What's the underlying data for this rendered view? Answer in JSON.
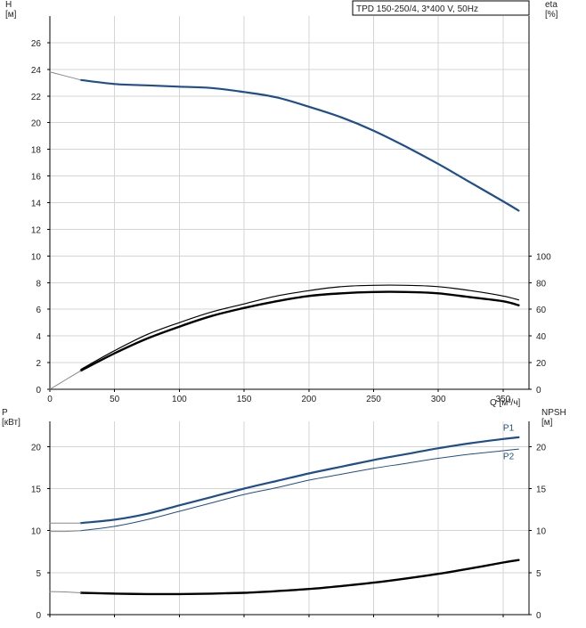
{
  "chart_data": [
    {
      "type": "line",
      "title": "TPD 150-250/4, 3*400 V, 50Hz",
      "xlabel": "Q [м³/ч]",
      "ylabel_left": "H\n[м]",
      "ylabel_right": "eta\n[%]",
      "xlim": [
        0,
        370
      ],
      "ylim_left": [
        0,
        28
      ],
      "ylim_right": [
        0,
        280
      ],
      "grid": true,
      "x_ticks": [
        0,
        50,
        100,
        150,
        200,
        250,
        300,
        350
      ],
      "y_ticks_left": [
        0,
        2,
        4,
        6,
        8,
        10,
        12,
        14,
        16,
        18,
        20,
        22,
        24,
        26
      ],
      "y_ticks_right": [
        0,
        20,
        40,
        60,
        80,
        100
      ],
      "series": [
        {
          "axis": "left",
          "color": "#1f4e8c",
          "width": 2.2,
          "style": "solid",
          "x": [
            24,
            50,
            75,
            100,
            125,
            150,
            175,
            200,
            225,
            250,
            275,
            300,
            325,
            350,
            362
          ],
          "y": [
            23.2,
            22.9,
            22.8,
            22.7,
            22.6,
            22.3,
            21.9,
            21.2,
            20.4,
            19.4,
            18.2,
            16.9,
            15.5,
            14.1,
            13.4
          ]
        },
        {
          "axis": "left",
          "color": "#888888",
          "width": 1,
          "style": "solid",
          "x": [
            0,
            8,
            16,
            24
          ],
          "y": [
            23.8,
            23.6,
            23.4,
            23.2
          ]
        },
        {
          "axis": "right",
          "color": "#000000",
          "width": 1.2,
          "style": "solid",
          "x": [
            24,
            50,
            75,
            100,
            125,
            150,
            175,
            200,
            225,
            250,
            275,
            300,
            325,
            350,
            362
          ],
          "y": [
            15,
            29,
            41,
            50,
            58,
            64,
            70,
            74,
            77,
            78,
            78,
            77,
            74,
            70,
            67
          ]
        },
        {
          "axis": "right",
          "color": "#000000",
          "width": 2.4,
          "style": "solid",
          "x": [
            24,
            50,
            75,
            100,
            125,
            150,
            175,
            200,
            225,
            250,
            275,
            300,
            325,
            350,
            362
          ],
          "y": [
            14,
            27,
            38,
            47,
            55,
            61,
            66,
            70,
            72,
            73,
            73,
            72,
            69,
            66,
            63
          ]
        },
        {
          "axis": "right",
          "color": "#888888",
          "width": 1,
          "style": "solid",
          "x": [
            0,
            12,
            24
          ],
          "y": [
            0,
            7,
            14
          ]
        }
      ]
    },
    {
      "type": "line",
      "xlabel": "",
      "ylabel_left": "P\n[кВт]",
      "ylabel_right": "NPSH\n[м]",
      "xlim": [
        0,
        370
      ],
      "ylim_left": [
        0,
        23
      ],
      "ylim_right": [
        0,
        23
      ],
      "grid": true,
      "y_ticks_left": [
        0,
        5,
        10,
        15,
        20
      ],
      "y_ticks_right": [
        0,
        5,
        10,
        15,
        20
      ],
      "series": [
        {
          "name": "P1",
          "axis": "left",
          "color": "#1f4e8c",
          "width": 2.2,
          "style": "solid",
          "x": [
            24,
            50,
            75,
            100,
            125,
            150,
            175,
            200,
            225,
            250,
            275,
            300,
            325,
            350,
            362
          ],
          "y": [
            10.9,
            11.3,
            12.0,
            13.0,
            14.0,
            15.0,
            15.9,
            16.8,
            17.6,
            18.4,
            19.1,
            19.8,
            20.4,
            20.9,
            21.1
          ]
        },
        {
          "name": "P2",
          "axis": "left",
          "color": "#1f4e8c",
          "width": 1,
          "style": "solid",
          "x": [
            24,
            50,
            75,
            100,
            125,
            150,
            175,
            200,
            225,
            250,
            275,
            300,
            325,
            350,
            362
          ],
          "y": [
            10.0,
            10.5,
            11.3,
            12.3,
            13.3,
            14.3,
            15.1,
            16.0,
            16.7,
            17.4,
            18.0,
            18.6,
            19.1,
            19.5,
            19.7
          ]
        },
        {
          "axis": "left",
          "color": "#888888",
          "width": 1,
          "style": "solid",
          "x": [
            0,
            12,
            24
          ],
          "y": [
            10.9,
            10.9,
            10.9
          ]
        },
        {
          "axis": "left",
          "color": "#888888",
          "width": 1,
          "style": "solid",
          "x": [
            0,
            12,
            24
          ],
          "y": [
            9.9,
            9.9,
            10.0
          ]
        },
        {
          "axis": "right",
          "color": "#000000",
          "width": 2.4,
          "style": "solid",
          "x": [
            24,
            50,
            75,
            100,
            125,
            150,
            175,
            200,
            225,
            250,
            275,
            300,
            325,
            350,
            362
          ],
          "y": [
            2.6,
            2.5,
            2.45,
            2.45,
            2.5,
            2.6,
            2.8,
            3.05,
            3.4,
            3.8,
            4.3,
            4.85,
            5.5,
            6.2,
            6.5
          ]
        },
        {
          "axis": "right",
          "color": "#888888",
          "width": 1,
          "style": "solid",
          "x": [
            0,
            12,
            24
          ],
          "y": [
            2.75,
            2.7,
            2.6
          ]
        }
      ],
      "labels": [
        {
          "text": "P1",
          "x": 350,
          "y": 21.9,
          "color": "#1f4e8c"
        },
        {
          "text": "P2",
          "x": 350,
          "y": 18.5,
          "color": "#1f4e8c"
        }
      ]
    }
  ]
}
